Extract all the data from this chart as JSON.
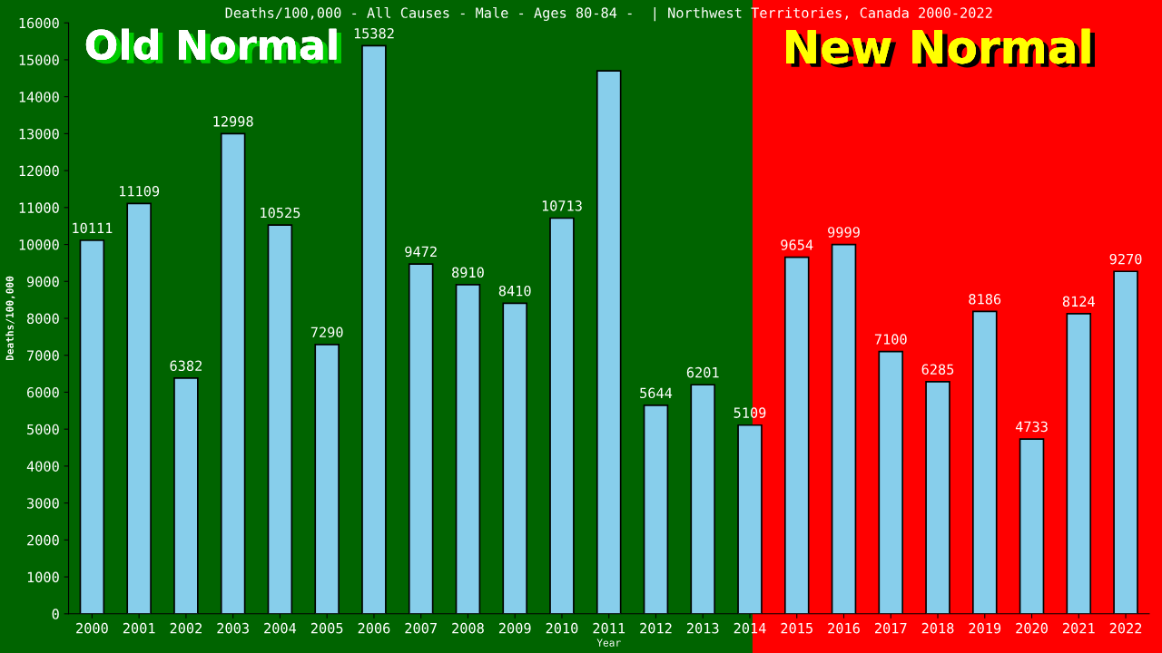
{
  "chart_data": {
    "type": "bar",
    "title": "Deaths/100,000 - All Causes - Male - Ages 80-84 -  | Northwest Territories, Canada 2000-2022",
    "xlabel": "Year",
    "ylabel": "Deaths/100,000",
    "categories": [
      "2000",
      "2001",
      "2002",
      "2003",
      "2004",
      "2005",
      "2006",
      "2007",
      "2008",
      "2009",
      "2010",
      "2011",
      "2012",
      "2013",
      "2014",
      "2015",
      "2016",
      "2017",
      "2018",
      "2019",
      "2020",
      "2021",
      "2022"
    ],
    "values": [
      10111,
      11109,
      6382,
      12998,
      10525,
      7290,
      15382,
      9472,
      8910,
      8410,
      10713,
      14700,
      5644,
      6201,
      5109,
      9654,
      9999,
      7100,
      6285,
      8186,
      4733,
      8124,
      9270
    ],
    "value_labels": [
      "10111",
      "11109",
      "6382",
      "12998",
      "10525",
      "7290",
      "15382",
      "9472",
      "8910",
      "8410",
      "10713",
      null,
      "5644",
      "6201",
      "5109",
      "9654",
      "9999",
      "7100",
      "6285",
      "8186",
      "4733",
      "8124",
      "9270"
    ],
    "color": "#87ceeb",
    "ylim": [
      0,
      16000
    ],
    "yticks": [
      0,
      1000,
      2000,
      3000,
      4000,
      5000,
      6000,
      7000,
      8000,
      9000,
      10000,
      11000,
      12000,
      13000,
      14000,
      15000,
      16000
    ],
    "grid": false,
    "legend": false,
    "bands": [
      {
        "axis": "x",
        "from": "2000",
        "to": "2014",
        "label": "Old Normal",
        "color": "#006400"
      },
      {
        "axis": "x",
        "from": "2014",
        "to": "2022",
        "label": "New Normal",
        "color": "#ff0000"
      }
    ]
  }
}
